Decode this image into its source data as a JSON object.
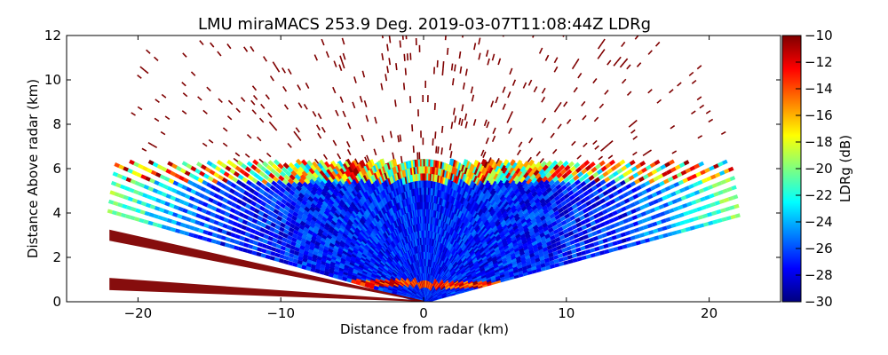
{
  "chart_data": {
    "type": "heatmap",
    "subtype": "radar-rhi-scan",
    "title": "LMU miraMACS 253.9 Deg. 2019-03-07T11:08:44Z  LDRg",
    "xlabel": "Distance from radar (km)",
    "ylabel": "Distance Above radar  (km)",
    "xlim": [
      -25,
      25
    ],
    "ylim": [
      0,
      12
    ],
    "xticks": [
      -20,
      -10,
      0,
      10,
      20
    ],
    "yticks": [
      0,
      2,
      4,
      6,
      8,
      10,
      12
    ],
    "max_range_km": 22.5,
    "colorbar": {
      "label": "LDRg (dB)",
      "range": [
        -30,
        -10
      ],
      "ticks": [
        -10,
        -12,
        -14,
        -16,
        -18,
        -20,
        -22,
        -24,
        -26,
        -28,
        -30
      ],
      "colormap": [
        "#00007f",
        "#0000ff",
        "#007fff",
        "#00ffff",
        "#7fff7f",
        "#ffff00",
        "#ff7f00",
        "#ff0000",
        "#7f0000"
      ]
    },
    "layers": [
      {
        "name": "cloud-layer",
        "base_km": 0.0,
        "top_km": 6.3,
        "typical_ldr_db": -27
      },
      {
        "name": "cloud-top-edge",
        "height_km": 6.0,
        "typical_ldr_db": -15
      },
      {
        "name": "melting-layer",
        "height_km": 0.8,
        "typical_ldr_db": -14
      },
      {
        "name": "noise-above-cloud",
        "base_km": 6.3,
        "top_km": 12.0,
        "typical_ldr_db": -10
      }
    ]
  },
  "colors": {
    "plot_background": "#ffffff",
    "strong_return": "#7f0000",
    "clutter": "#d62000"
  }
}
